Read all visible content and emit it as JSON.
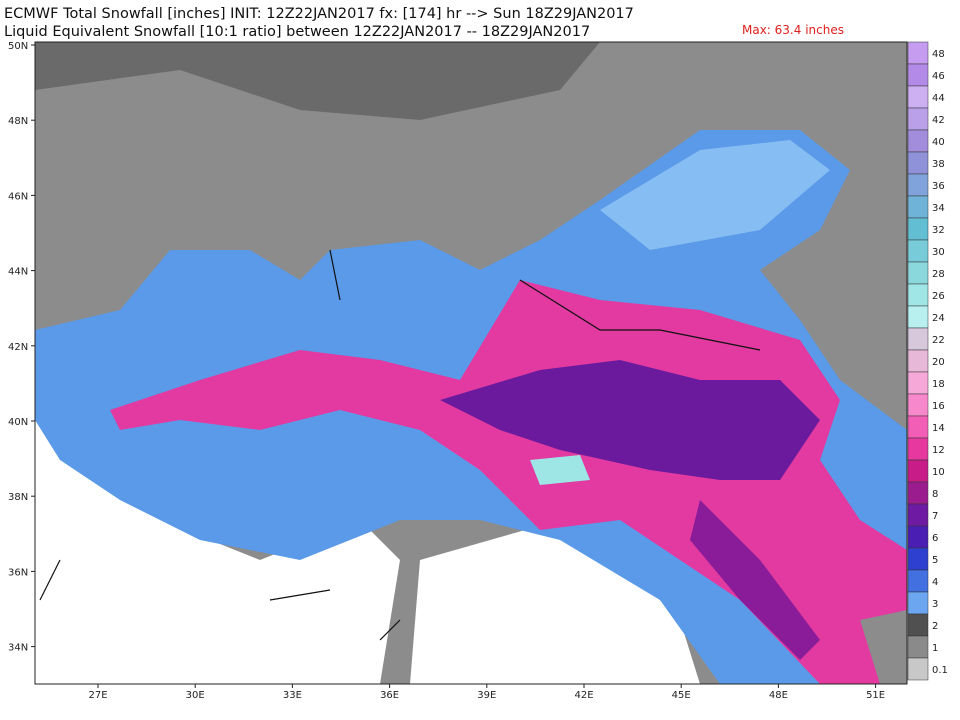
{
  "header": {
    "line1": "ECMWF Total Snowfall [inches] INIT: 12Z22JAN2017 fx: [174] hr --> Sun 18Z29JAN2017",
    "line2": "Liquid Equivalent Snowfall [10:1 ratio] between 12Z22JAN2017 -- 18Z29JAN2017",
    "max": "Max: 63.4 inches"
  },
  "map": {
    "lat_labels": [
      "50N",
      "48N",
      "46N",
      "44N",
      "42N",
      "40N",
      "38N",
      "36N",
      "34N"
    ],
    "lon_labels": [
      "27E",
      "30E",
      "33E",
      "36E",
      "39E",
      "42E",
      "45E",
      "48E",
      "51E"
    ]
  },
  "colorbar": {
    "labels": [
      "48",
      "46",
      "44",
      "42",
      "40",
      "38",
      "36",
      "34",
      "32",
      "30",
      "28",
      "26",
      "24",
      "22",
      "20",
      "18",
      "16",
      "14",
      "12",
      "10",
      "8",
      "7",
      "6",
      "5",
      "4",
      "3",
      "2",
      "1",
      "0.1"
    ],
    "colors": [
      "#c69cf0",
      "#b48ae8",
      "#cdb0f2",
      "#b9a0e8",
      "#a28ddc",
      "#8f92d8",
      "#7fa3da",
      "#70b3d8",
      "#62bed2",
      "#78cbd8",
      "#8ad8dc",
      "#a0e6e6",
      "#b8f0f0",
      "#d8c8dc",
      "#e8b8d8",
      "#f6a8d8",
      "#f888cc",
      "#f25eb6",
      "#e6389e",
      "#c81c88",
      "#9a1c8e",
      "#6e1aa2",
      "#4a1eb2",
      "#2e40d0",
      "#4270e0",
      "#6ca6f0",
      "#505050",
      "#8a8a8a",
      "#c8c8c8"
    ]
  }
}
